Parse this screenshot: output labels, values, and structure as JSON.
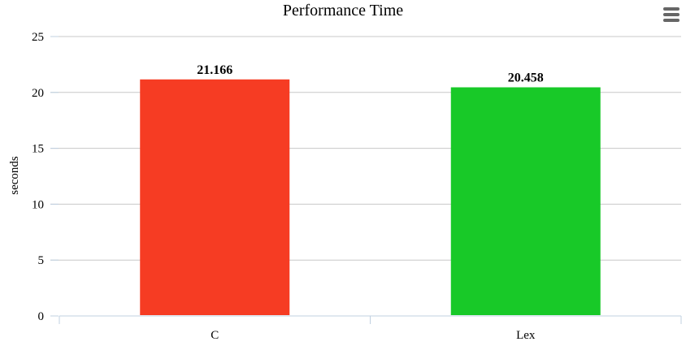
{
  "chart_data": {
    "type": "bar",
    "title": "Performance Time",
    "xlabel": "",
    "ylabel": "seconds",
    "categories": [
      "C",
      "Lex"
    ],
    "values": [
      21.166,
      20.458
    ],
    "data_labels": [
      "21.166",
      "20.458"
    ],
    "colors": [
      "#f63c23",
      "#18c928"
    ],
    "ylim": [
      0,
      25
    ],
    "yticks": [
      "0",
      "5",
      "10",
      "15",
      "20",
      "25"
    ],
    "grid": true,
    "legend": "none"
  },
  "toolbar": {
    "menu_icon": "hamburger-menu-icon"
  }
}
